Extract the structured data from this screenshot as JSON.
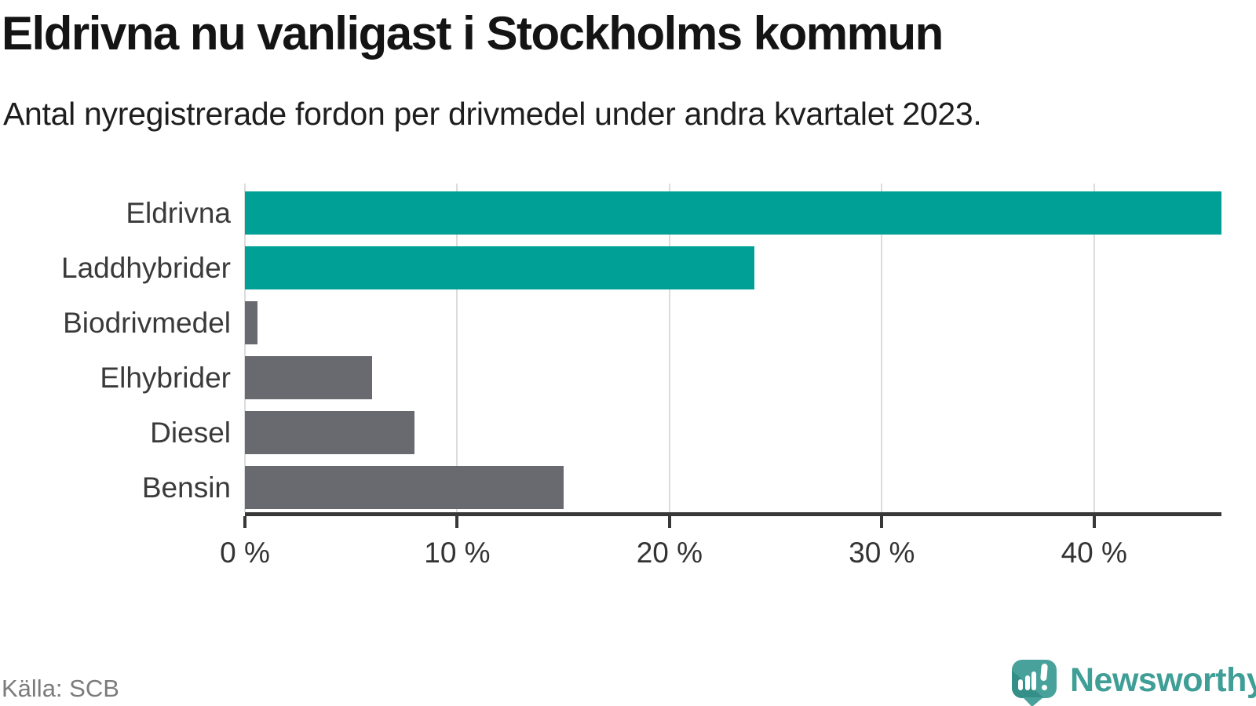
{
  "header": {
    "title": "Eldrivna nu vanligast i Stockholms kommun",
    "subtitle": "Antal nyregistrerade fordon per drivmedel under andra kvartalet 2023."
  },
  "chart_data": {
    "type": "bar",
    "orientation": "horizontal",
    "title": "Eldrivna nu vanligast i Stockholms kommun",
    "subtitle": "Antal nyregistrerade fordon per drivmedel under andra kvartalet 2023.",
    "categories": [
      "Eldrivna",
      "Laddhybrider",
      "Biodrivmedel",
      "Elhybrider",
      "Diesel",
      "Bensin"
    ],
    "values": [
      46,
      24,
      0.6,
      6,
      8,
      15
    ],
    "unit": "%",
    "xlabel": "",
    "ylabel": "",
    "xlim": [
      0,
      46
    ],
    "x_tick_values": [
      0,
      10,
      20,
      30,
      40
    ],
    "x_tick_labels": [
      "0 %",
      "10 %",
      "20 %",
      "30 %",
      "40 %"
    ],
    "grid": true,
    "legend": "none",
    "bar_colors": [
      "#00a096",
      "#00a096",
      "#696970",
      "#696970",
      "#696970",
      "#696970"
    ]
  },
  "footer": {
    "source": "Källa: SCB",
    "brand": "Newsworthy"
  },
  "colors": {
    "teal_bar": "#00a096",
    "gray_bar": "#696970",
    "axis": "#383838",
    "gridline": "#dcdcdc",
    "category_label": "#3a3a3a",
    "tick_label": "#333333",
    "title": "#141414",
    "subtitle": "#1e1e1e",
    "source": "#7b7b7b",
    "brand_text": "#3f9e96",
    "logo_teal": "#48a29b",
    "logo_dark_teal": "#358f89"
  }
}
